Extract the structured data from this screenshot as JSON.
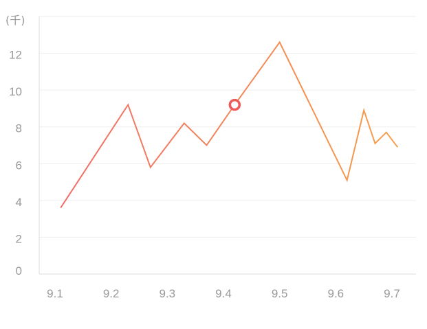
{
  "unit_label": "(千)",
  "colors": {
    "line_start": "#f06a6a",
    "line_end": "#f5a24a",
    "grid": "#eeeeee",
    "axis": "#dddddd",
    "tick_text": "#999999",
    "marker": "#ef5a5a"
  },
  "chart_data": {
    "type": "line",
    "title": "",
    "xlabel": "",
    "ylabel": "(千)",
    "x_ticks": [
      "9.1",
      "9.2",
      "9.3",
      "9.4",
      "9.5",
      "9.6",
      "9.7"
    ],
    "y_ticks": [
      0,
      2,
      4,
      6,
      8,
      10,
      12
    ],
    "xlim": [
      9.1,
      9.7
    ],
    "ylim": [
      0,
      14
    ],
    "grid": true,
    "legend": "none",
    "gradient": "left-red-to-right-orange",
    "series": [
      {
        "points": [
          {
            "x": 9.11,
            "y": 3.6
          },
          {
            "x": 9.23,
            "y": 9.2
          },
          {
            "x": 9.27,
            "y": 5.8
          },
          {
            "x": 9.33,
            "y": 8.2
          },
          {
            "x": 9.37,
            "y": 7.0
          },
          {
            "x": 9.42,
            "y": 9.2
          },
          {
            "x": 9.5,
            "y": 12.6
          },
          {
            "x": 9.62,
            "y": 5.1
          },
          {
            "x": 9.65,
            "y": 8.9
          },
          {
            "x": 9.67,
            "y": 7.1
          },
          {
            "x": 9.69,
            "y": 7.7
          },
          {
            "x": 9.71,
            "y": 6.9
          }
        ]
      }
    ],
    "highlight": {
      "x": 9.42,
      "y": 9.2
    }
  }
}
